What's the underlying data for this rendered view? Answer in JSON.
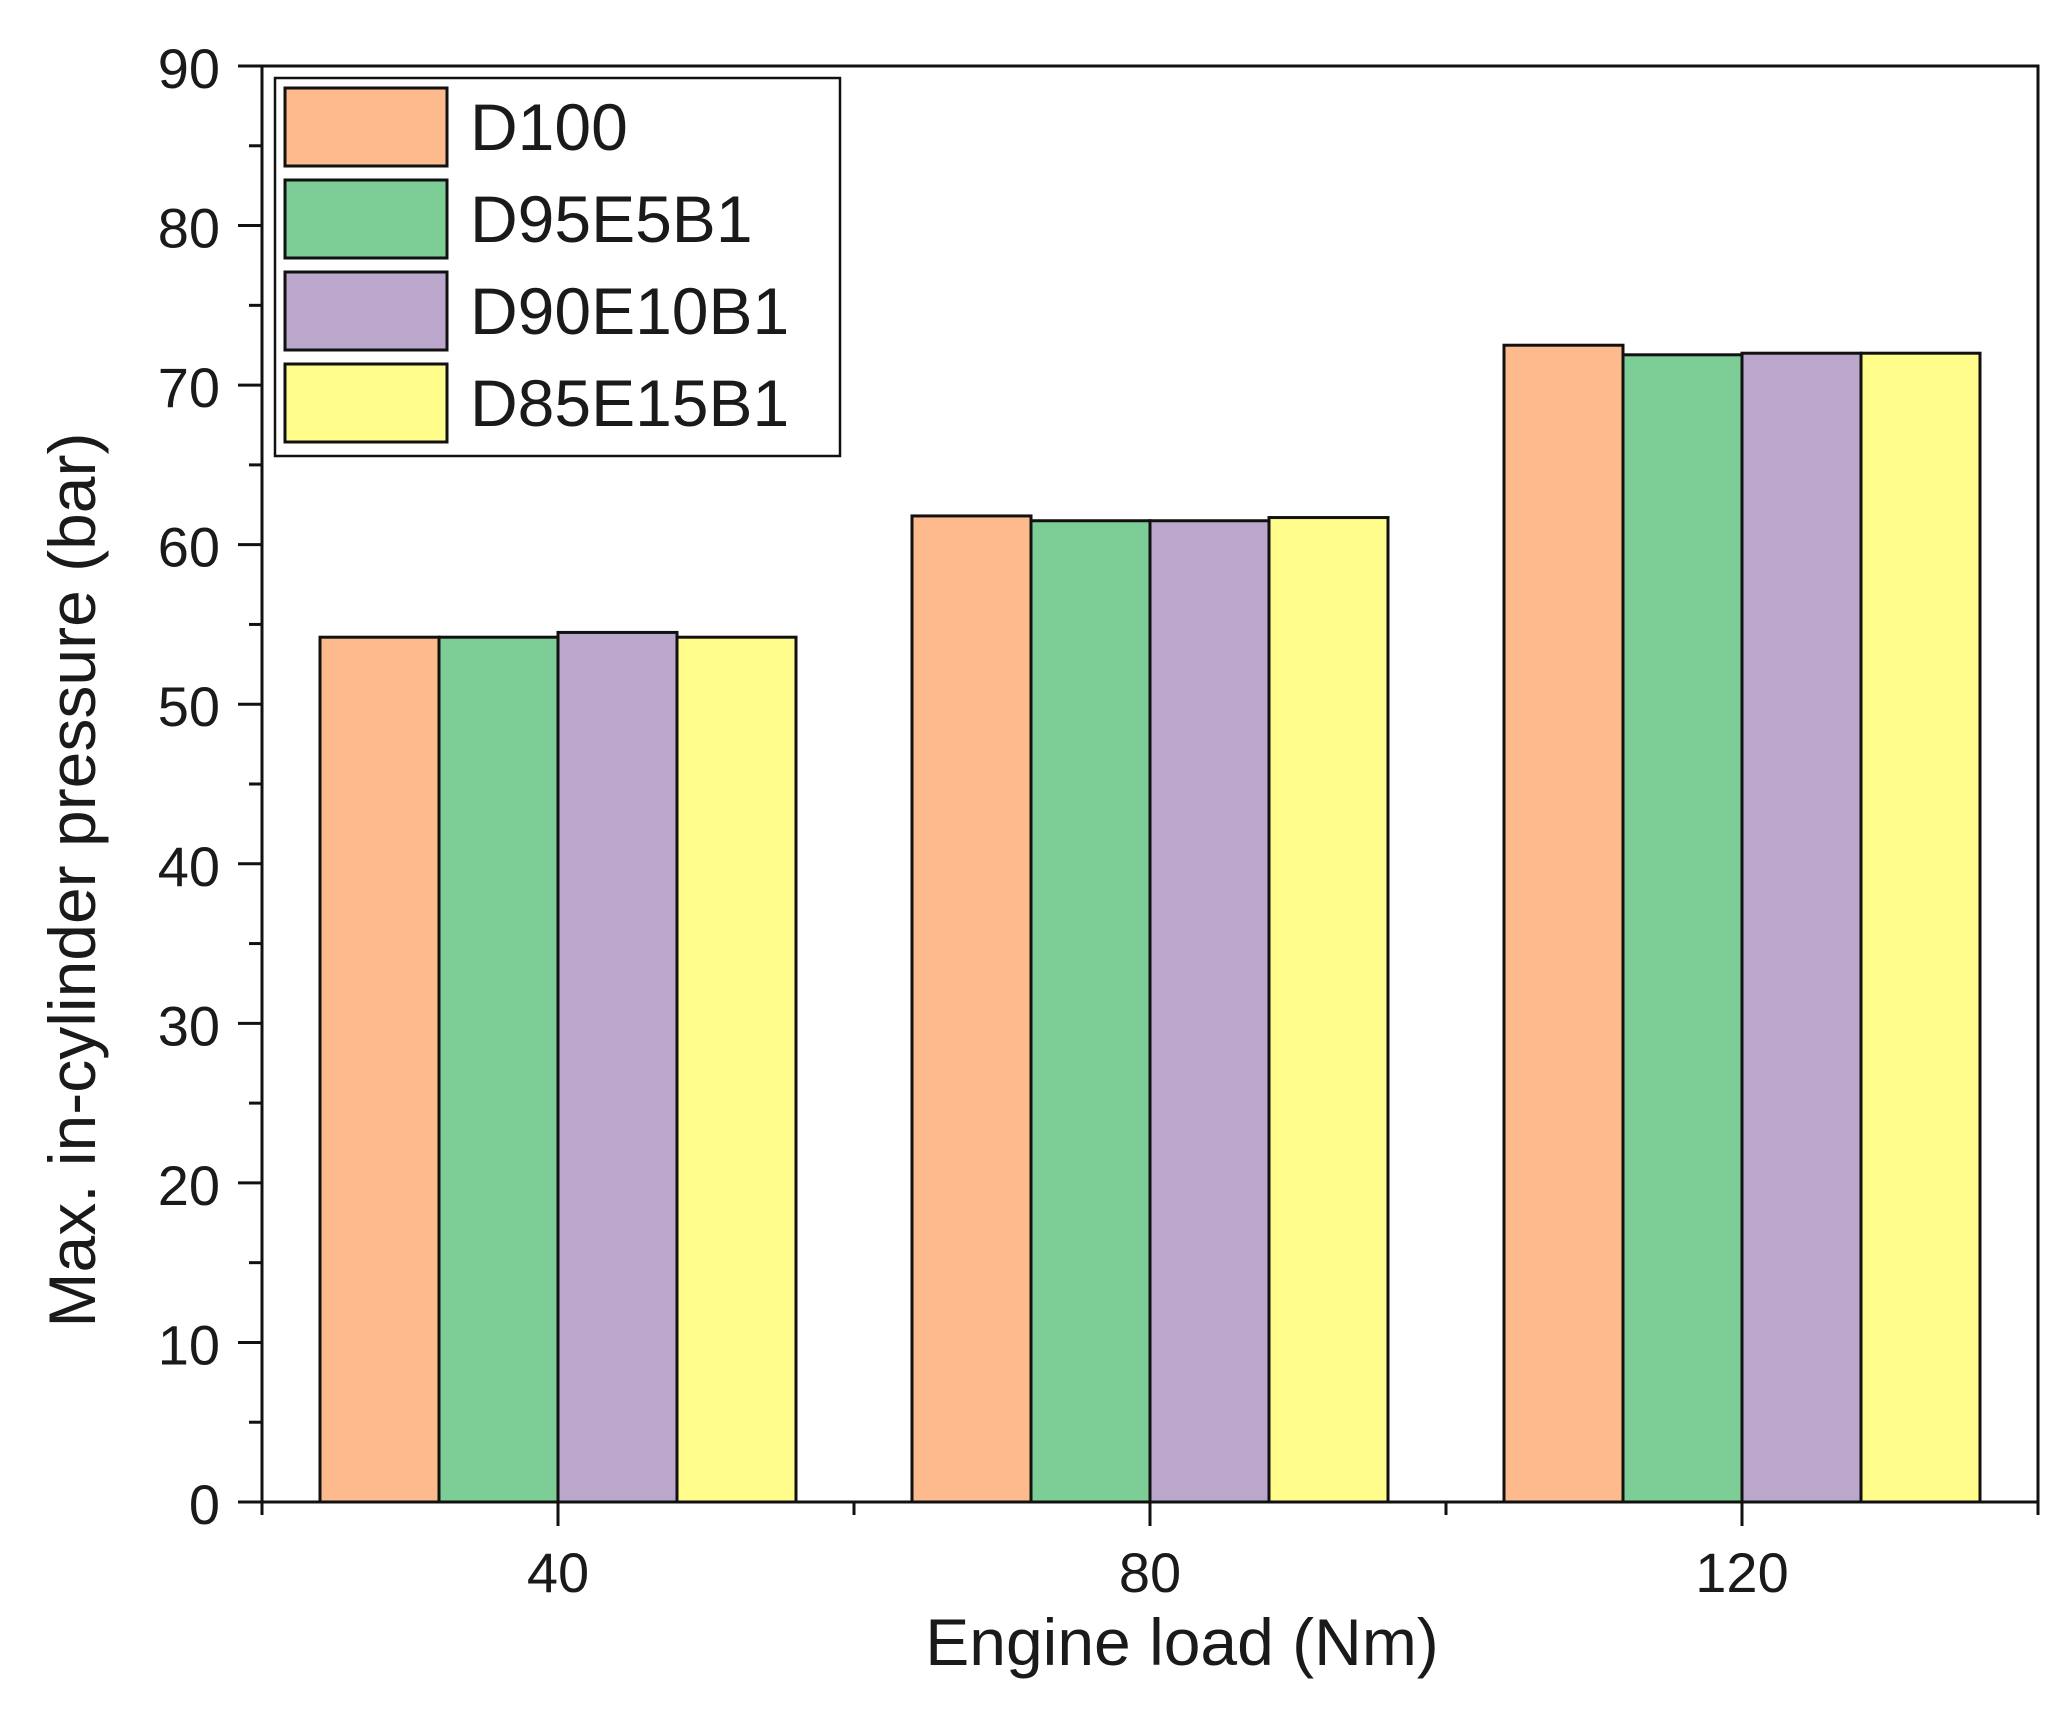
{
  "chart_data": {
    "type": "bar",
    "title": "",
    "xlabel": "Engine load (Nm)",
    "ylabel": "Max. in-cylinder pressure (bar)",
    "categories": [
      "40",
      "80",
      "120"
    ],
    "ylim": [
      0,
      90
    ],
    "yticks": [
      0,
      10,
      20,
      30,
      40,
      50,
      60,
      70,
      80,
      90
    ],
    "grid": false,
    "legend_position": "top-left",
    "series": [
      {
        "name": "D100",
        "color": "#FDBA8C",
        "values": [
          54.2,
          61.8,
          72.5
        ]
      },
      {
        "name": "D95E5B1",
        "color": "#7DCD96",
        "values": [
          54.2,
          61.5,
          71.9
        ]
      },
      {
        "name": "D90E10B1",
        "color": "#BBA6CC",
        "values": [
          54.5,
          61.5,
          72.0
        ]
      },
      {
        "name": "D85E15B1",
        "color": "#FFFC8A",
        "values": [
          54.2,
          61.7,
          72.0
        ]
      }
    ]
  }
}
